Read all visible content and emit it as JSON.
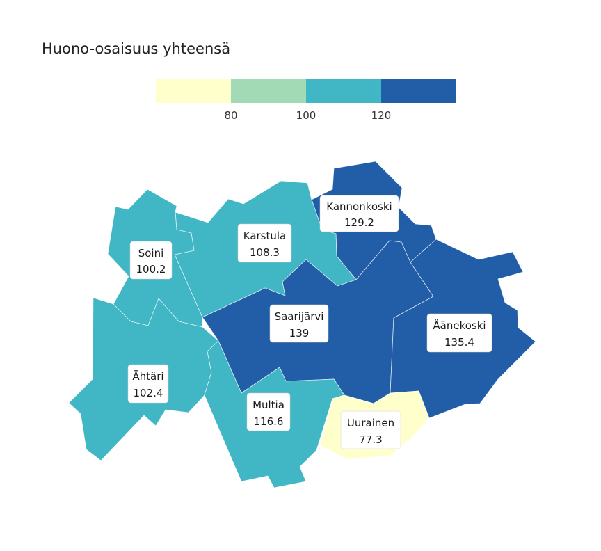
{
  "title": "Huono-osaisuus yhteensä",
  "legend": {
    "bins": [
      {
        "color": "#ffffcc"
      },
      {
        "color": "#a1dab4"
      },
      {
        "color": "#41b6c4"
      },
      {
        "color": "#225ea8"
      }
    ],
    "breaks": [
      "80",
      "100",
      "120"
    ]
  },
  "municipalities": [
    {
      "id": "kannonkoski",
      "name": "Kannonkoski",
      "value": "129.2",
      "color": "#225ea8"
    },
    {
      "id": "karstula",
      "name": "Karstula",
      "value": "108.3",
      "color": "#41b6c4"
    },
    {
      "id": "soini",
      "name": "Soini",
      "value": "100.2",
      "color": "#41b6c4"
    },
    {
      "id": "saarijarvi",
      "name": "Saarijärvi",
      "value": "139",
      "color": "#225ea8"
    },
    {
      "id": "aanekoski",
      "name": "Äänekoski",
      "value": "135.4",
      "color": "#225ea8"
    },
    {
      "id": "ahtari",
      "name": "Ähtäri",
      "value": "102.4",
      "color": "#41b6c4"
    },
    {
      "id": "multia",
      "name": "Multia",
      "value": "116.6",
      "color": "#41b6c4"
    },
    {
      "id": "uurainen",
      "name": "Uurainen",
      "value": "77.3",
      "color": "#ffffcc"
    }
  ]
}
